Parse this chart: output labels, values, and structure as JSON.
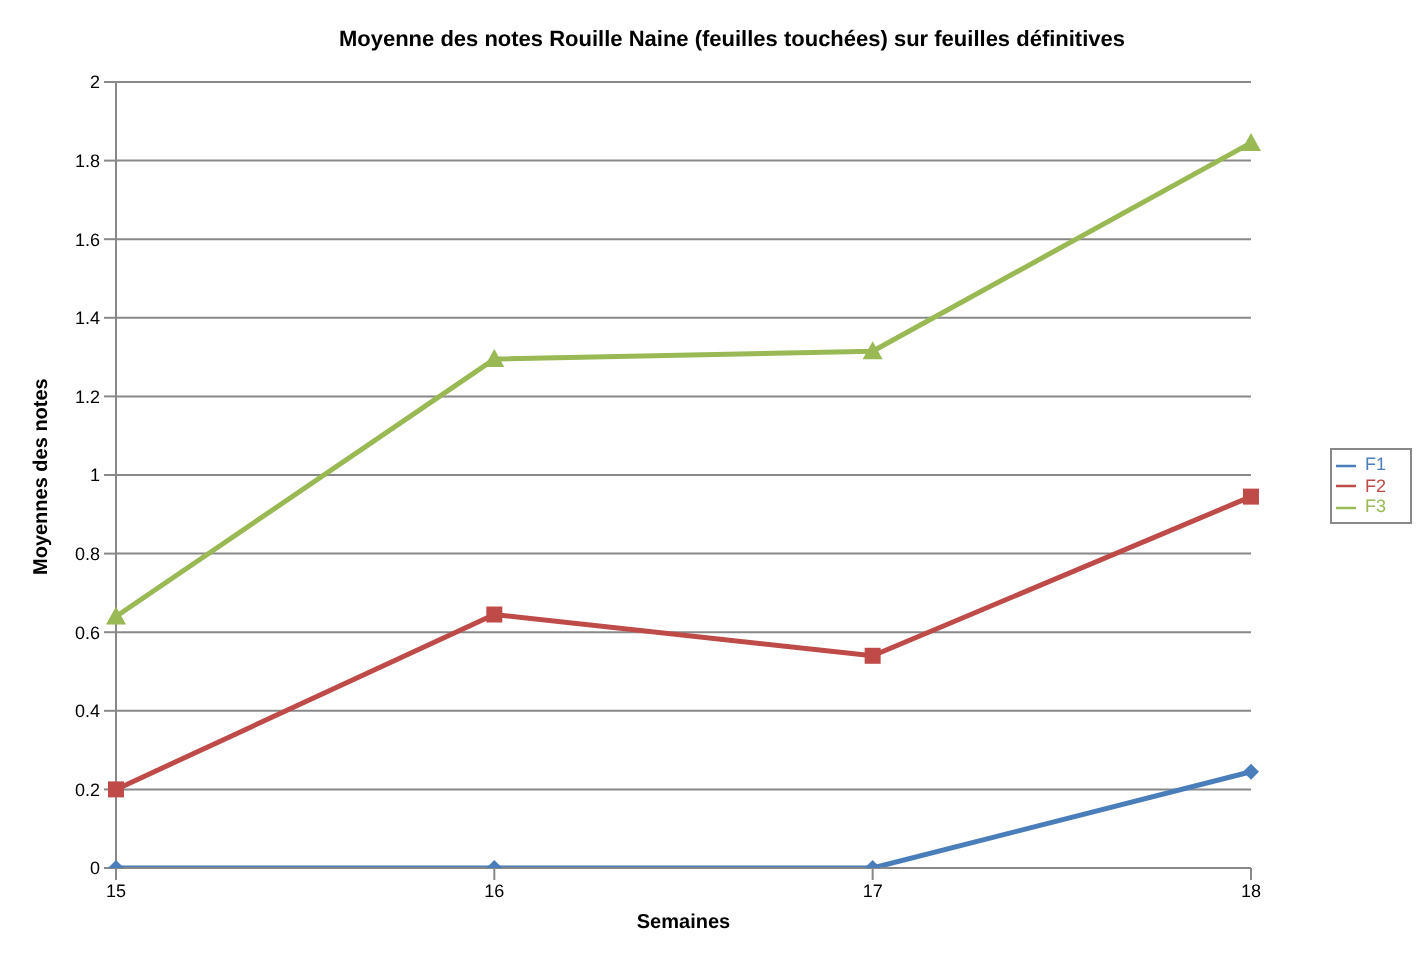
{
  "chart_data": {
    "type": "line",
    "title": "Moyenne des notes Rouille Naine (feuilles touchées) sur feuilles définitives",
    "xlabel": "Semaines",
    "ylabel": "Moyennes des notes",
    "categories": [
      "15",
      "16",
      "17",
      "18"
    ],
    "series": [
      {
        "name": "F1",
        "color": "#4a7ebb",
        "marker": "diamond",
        "values": [
          0,
          0,
          0,
          0.245
        ]
      },
      {
        "name": "F2",
        "color": "#be4b48",
        "marker": "square",
        "values": [
          0.2,
          0.645,
          0.54,
          0.945
        ]
      },
      {
        "name": "F3",
        "color": "#98b954",
        "marker": "triangle",
        "values": [
          0.64,
          1.295,
          1.315,
          1.845
        ]
      }
    ],
    "ylim": [
      0,
      2
    ],
    "yticks": [
      0,
      0.2,
      0.4,
      0.6,
      0.8,
      1,
      1.2,
      1.4,
      1.6,
      1.8,
      2
    ],
    "grid": "y",
    "legend": "right",
    "line_style": "solid"
  }
}
